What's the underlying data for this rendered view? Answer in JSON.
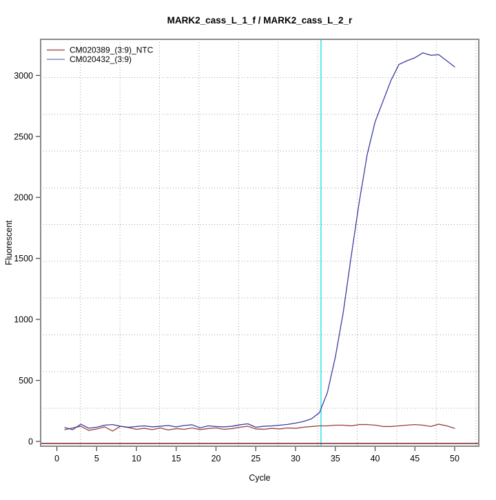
{
  "chart_data": {
    "type": "line",
    "title": "MARK2_cass_L_1_f / MARK2_cass_L_2_r",
    "xlabel": "Cycle",
    "ylabel": "Fluorescent",
    "x_ticks": [
      0,
      5,
      10,
      15,
      20,
      25,
      30,
      35,
      40,
      45,
      50
    ],
    "y_ticks": [
      0,
      500,
      1000,
      1500,
      2000,
      2500,
      3000
    ],
    "xlim": [
      -2.04,
      53.03
    ],
    "ylim": [
      -39.6,
      3296
    ],
    "grid": {
      "style": "dotted",
      "color": "#9E9E9E",
      "x_positions": [
        2.96,
        7.93,
        12.9,
        17.87,
        22.84,
        27.81,
        32.78,
        37.75,
        42.72,
        47.69,
        52.66
      ],
      "y_positions": [
        271,
        572,
        873,
        1175,
        1476,
        1777,
        2078,
        2380,
        2681,
        2982
      ]
    },
    "marker_line": {
      "x": 33.2,
      "color": "#2BE2E2"
    },
    "baseline_line": {
      "y": -17,
      "color": "#7E1E1E"
    },
    "x": [
      1,
      2,
      3,
      4,
      5,
      6,
      7,
      8,
      9,
      10,
      11,
      12,
      13,
      14,
      15,
      16,
      17,
      18,
      19,
      20,
      21,
      22,
      23,
      24,
      25,
      26,
      27,
      28,
      29,
      30,
      31,
      32,
      33,
      34,
      35,
      36,
      37,
      38,
      39,
      40,
      41,
      42,
      43,
      44,
      45,
      46,
      47,
      48,
      49,
      50
    ],
    "series": [
      {
        "name": "CM020389_(3:9)_NTC",
        "color": "#9C3C3C",
        "legend_color": "#A85050",
        "values": [
          96,
          110,
          124,
          90,
          102,
          119,
          85,
          124,
          113,
          99,
          107,
          96,
          110,
          93,
          105,
          99,
          110,
          96,
          105,
          110,
          99,
          105,
          116,
          124,
          102,
          99,
          107,
          102,
          110,
          107,
          116,
          122,
          127,
          127,
          133,
          133,
          127,
          138,
          138,
          133,
          122,
          122,
          127,
          133,
          138,
          133,
          122,
          141,
          127,
          107
        ]
      },
      {
        "name": "CM020432_(3:9)",
        "color": "#3C3CA3",
        "legend_color": "#8585CC",
        "values": [
          113,
          96,
          141,
          108,
          116,
          133,
          138,
          124,
          116,
          122,
          127,
          119,
          124,
          130,
          119,
          130,
          136,
          110,
          127,
          122,
          119,
          124,
          136,
          144,
          116,
          124,
          127,
          133,
          139,
          150,
          163,
          185,
          235,
          400,
          690,
          1060,
          1520,
          1960,
          2350,
          2620,
          2790,
          2960,
          3090,
          3120,
          3145,
          3185,
          3165,
          3170,
          3120,
          3070
        ]
      }
    ],
    "legend_position": "top-left"
  }
}
